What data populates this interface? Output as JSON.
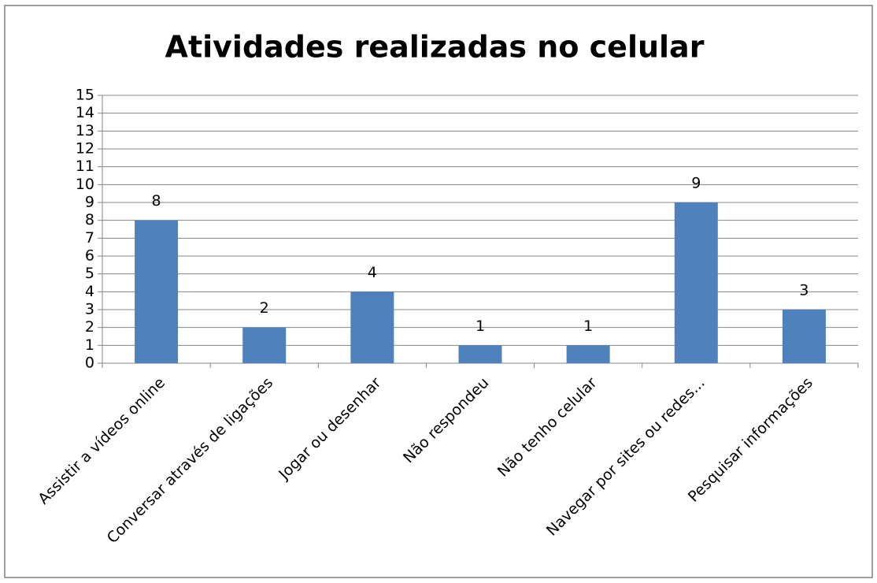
{
  "chart_data": {
    "type": "bar",
    "title": "Atividades realizadas no celular",
    "categories": [
      "Assistir a vídeos online",
      "Conversar através de ligações",
      "Jogar ou desenhar",
      "Não respondeu",
      "Não tenho celular",
      "Navegar por sites ou redes...",
      "Pesquisar informações"
    ],
    "values": [
      8,
      2,
      4,
      1,
      1,
      9,
      3
    ],
    "color": "#4f81bd",
    "ylim": [
      0,
      15
    ],
    "yticks": [
      0,
      1,
      2,
      3,
      4,
      5,
      6,
      7,
      8,
      9,
      10,
      11,
      12,
      13,
      14,
      15
    ],
    "grid": true
  }
}
